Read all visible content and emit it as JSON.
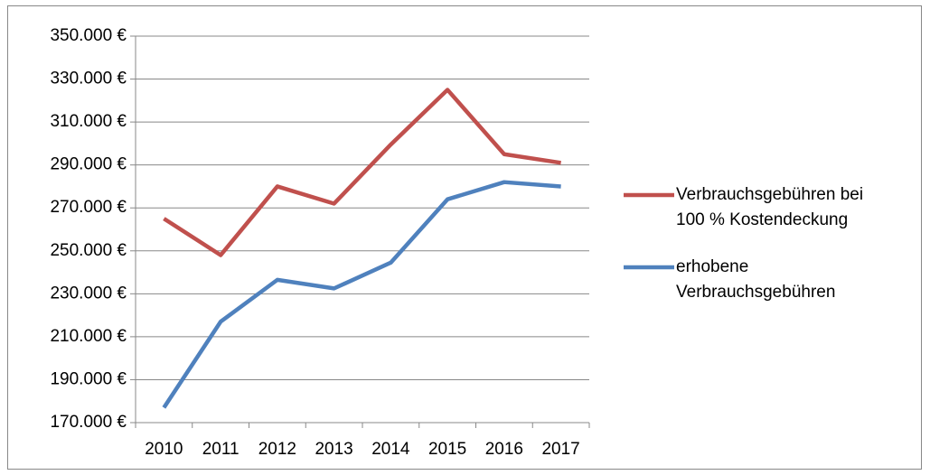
{
  "chart_data": {
    "type": "line",
    "categories": [
      "2010",
      "2011",
      "2012",
      "2013",
      "2014",
      "2015",
      "2016",
      "2017"
    ],
    "series": [
      {
        "name": "Verbrauchsgebühren bei 100 % Kostendeckung",
        "color": "#c0504d",
        "values": [
          265000,
          248000,
          280000,
          272000,
          299500,
          325000,
          295000,
          291000
        ]
      },
      {
        "name": "erhobene Verbrauchsgebühren",
        "color": "#4f81bd",
        "values": [
          177000,
          217000,
          236500,
          232500,
          244500,
          274000,
          282000,
          280000
        ]
      }
    ],
    "ylim": [
      170000,
      350000
    ],
    "yticks": [
      {
        "value": 170000,
        "label": "170.000 €"
      },
      {
        "value": 190000,
        "label": "190.000 €"
      },
      {
        "value": 210000,
        "label": "210.000 €"
      },
      {
        "value": 230000,
        "label": "230.000 €"
      },
      {
        "value": 250000,
        "label": "250.000 €"
      },
      {
        "value": 270000,
        "label": "270.000 €"
      },
      {
        "value": 290000,
        "label": "290.000 €"
      },
      {
        "value": 310000,
        "label": "310.000 €"
      },
      {
        "value": 330000,
        "label": "330.000 €"
      },
      {
        "value": 350000,
        "label": "350.000 €"
      }
    ],
    "grid": true,
    "legend": "right"
  }
}
